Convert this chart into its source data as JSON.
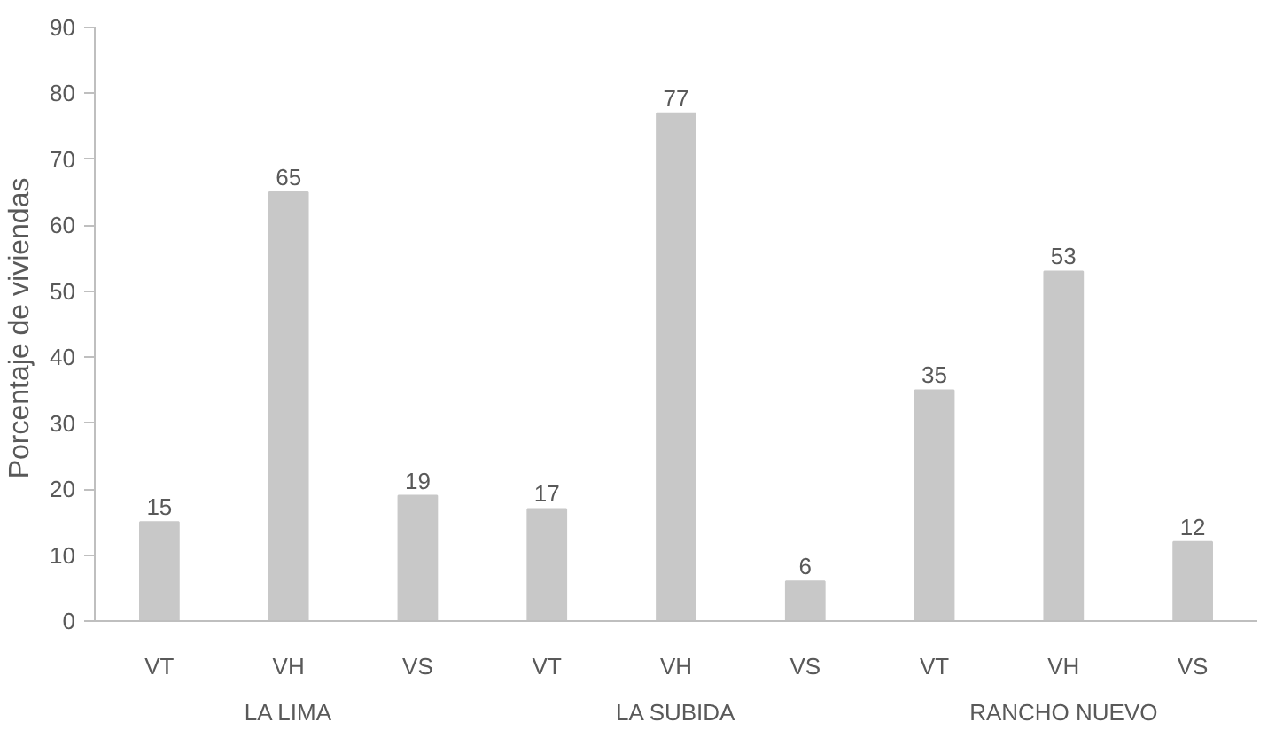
{
  "chart_data": {
    "type": "bar",
    "ylabel": "Porcentaje de  viviendas",
    "categories": [
      "VT",
      "VH",
      "VS",
      "VT",
      "VH",
      "VS",
      "VT",
      "VH",
      "VS"
    ],
    "values": [
      15,
      65,
      19,
      17,
      77,
      6,
      35,
      53,
      12
    ],
    "color": "#c8c8c8",
    "data_labels": true,
    "ylim": [
      0,
      90
    ],
    "yticks": [
      0,
      10,
      20,
      30,
      40,
      50,
      60,
      70,
      80,
      90
    ],
    "grid": false,
    "annotations": [
      "LA LIMA",
      "LA SUBIDA",
      "RANCHO NUEVO"
    ]
  }
}
